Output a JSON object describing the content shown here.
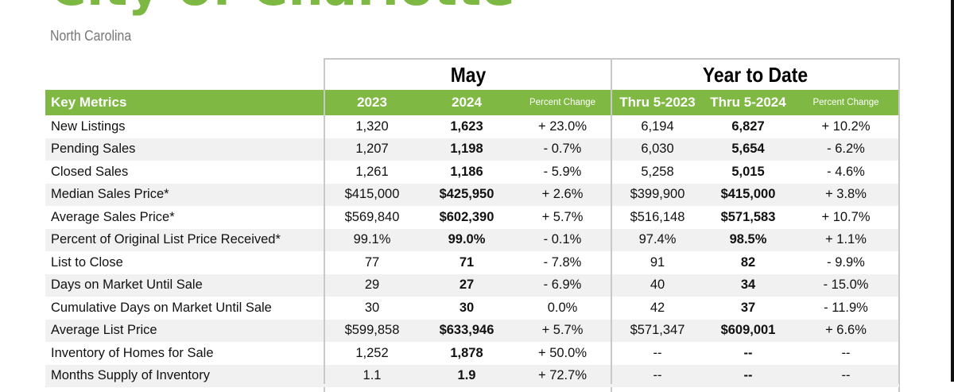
{
  "header": {
    "title": "City of Charlotte",
    "subtitle": "North Carolina"
  },
  "groups": {
    "month": "May",
    "ytd": "Year to Date"
  },
  "columns": [
    "Key Metrics",
    "2023",
    "2024",
    "Percent Change",
    "Thru 5-2023",
    "Thru 5-2024",
    "Percent Change"
  ],
  "rows": [
    [
      "New Listings",
      "1,320",
      "1,623",
      "+ 23.0%",
      "6,194",
      "6,827",
      "+ 10.2%"
    ],
    [
      "Pending Sales",
      "1,207",
      "1,198",
      "- 0.7%",
      "6,030",
      "5,654",
      "- 6.2%"
    ],
    [
      "Closed Sales",
      "1,261",
      "1,186",
      "- 5.9%",
      "5,258",
      "5,015",
      "- 4.6%"
    ],
    [
      "Median Sales Price*",
      "$415,000",
      "$425,950",
      "+ 2.6%",
      "$399,900",
      "$415,000",
      "+ 3.8%"
    ],
    [
      "Average Sales Price*",
      "$569,840",
      "$602,390",
      "+ 5.7%",
      "$516,148",
      "$571,583",
      "+ 10.7%"
    ],
    [
      "Percent of Original List Price Received*",
      "99.1%",
      "99.0%",
      "- 0.1%",
      "97.4%",
      "98.5%",
      "+ 1.1%"
    ],
    [
      "List to Close",
      "77",
      "71",
      "- 7.8%",
      "91",
      "82",
      "- 9.9%"
    ],
    [
      "Days on Market Until Sale",
      "29",
      "27",
      "- 6.9%",
      "40",
      "34",
      "- 15.0%"
    ],
    [
      "Cumulative Days on Market Until Sale",
      "30",
      "30",
      "0.0%",
      "42",
      "37",
      "- 11.9%"
    ],
    [
      "Average List Price",
      "$599,858",
      "$633,946",
      "+ 5.7%",
      "$571,347",
      "$609,001",
      "+ 6.6%"
    ],
    [
      "Inventory of Homes for Sale",
      "1,252",
      "1,878",
      "+ 50.0%",
      "--",
      "--",
      "--"
    ],
    [
      "Months Supply of Inventory",
      "1.1",
      "1.9",
      "+ 72.7%",
      "--",
      "--",
      "--"
    ]
  ],
  "colors": {
    "accent": "#7fb843",
    "title": "#7cb842",
    "stripe": "#f1f1f1"
  }
}
